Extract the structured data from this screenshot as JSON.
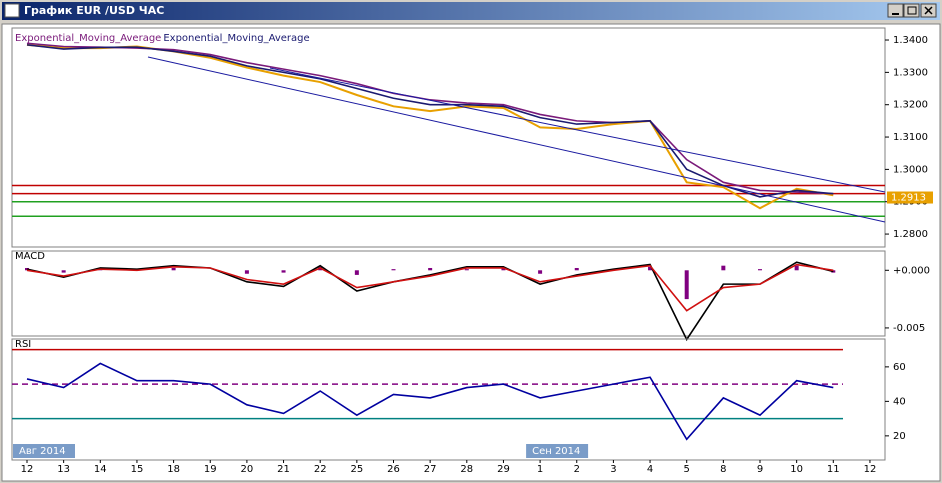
{
  "window": {
    "title": "График EUR /USD ЧАС"
  },
  "chart_data": [
    {
      "type": "line",
      "series": [
        {
          "color": "#e8a000",
          "values": [
            1.3385,
            1.3375,
            1.3375,
            1.338,
            1.3365,
            1.3345,
            1.3315,
            1.329,
            1.327,
            1.323,
            1.3195,
            1.318,
            1.3195,
            1.319,
            1.313,
            1.3125,
            1.314,
            1.315,
            1.296,
            1.2945,
            1.288,
            1.294,
            1.292,
            null
          ]
        },
        {
          "name": "Exponential_Moving_Average",
          "color": "#7a1a7a",
          "values": [
            1.339,
            1.338,
            1.3378,
            1.3375,
            1.337,
            1.3355,
            1.333,
            1.331,
            1.329,
            1.3265,
            1.3235,
            1.3215,
            1.3205,
            1.32,
            1.317,
            1.315,
            1.3145,
            1.315,
            1.303,
            1.296,
            1.2935,
            1.293,
            1.2925,
            null
          ]
        },
        {
          "name": "Exponential_Moving_Average",
          "color": "#1a1a70",
          "values": [
            1.3385,
            1.3372,
            1.3377,
            1.3378,
            1.3365,
            1.335,
            1.332,
            1.33,
            1.328,
            1.325,
            1.322,
            1.32,
            1.32,
            1.3195,
            1.316,
            1.314,
            1.3145,
            1.315,
            1.3,
            1.295,
            1.2915,
            1.2935,
            1.2925,
            null
          ]
        }
      ],
      "hlines": [
        {
          "value": 1.295,
          "color": "#c00000"
        },
        {
          "value": 1.2925,
          "color": "#c00000"
        },
        {
          "value": 1.29,
          "color": "#20a020"
        },
        {
          "value": 1.2855,
          "color": "#20a020"
        }
      ],
      "last_value": 1.2913,
      "ylim": [
        1.276,
        1.3431
      ],
      "yticks": [
        {
          "value": 1.28,
          "label": "1.2800"
        },
        {
          "value": 1.29,
          "label": "1.2900"
        },
        {
          "value": 1.3,
          "label": "1.3000"
        },
        {
          "value": 1.31,
          "label": "1.3100"
        },
        {
          "value": 1.32,
          "label": "1.3200"
        },
        {
          "value": 1.33,
          "label": "1.3300"
        },
        {
          "value": 1.34,
          "label": "1.3400"
        }
      ]
    },
    {
      "type": "line",
      "title": "MACD",
      "series": [
        {
          "kind": "bar",
          "color": "#800080",
          "values": [
            0.0002,
            -0.0002,
            0.0001,
            0.0001,
            0.0002,
            0,
            -0.0003,
            -0.0002,
            0.0003,
            -0.0004,
            0.0001,
            0.0002,
            0.0001,
            0.0002,
            -0.0003,
            0.0002,
            0.0001,
            0.0003,
            -0.0025,
            0.0004,
            0.0001,
            0.0004,
            -0.0002,
            null
          ]
        },
        {
          "color": "#000000",
          "values": [
            0.0001,
            -0.0006,
            0.0002,
            0.0001,
            0.0004,
            0.0002,
            -0.001,
            -0.0014,
            0.0004,
            -0.0018,
            -0.001,
            -0.0004,
            0.0003,
            0.0003,
            -0.0012,
            -0.0004,
            0.0001,
            0.0005,
            -0.006,
            -0.0012,
            -0.0012,
            0.0007,
            -0.0001,
            null
          ]
        },
        {
          "color": "#d01010",
          "values": [
            0,
            -0.0005,
            0.0001,
            0,
            0.0003,
            0.0002,
            -0.0008,
            -0.0012,
            0.0002,
            -0.0015,
            -0.001,
            -0.0005,
            0.0002,
            0.0002,
            -0.001,
            -0.0005,
            0,
            0.0004,
            -0.0035,
            -0.0015,
            -0.0012,
            0.0005,
            0,
            null
          ]
        }
      ],
      "ylim": [
        -0.0057,
        0.0015
      ],
      "yticks": [
        {
          "value": 0,
          "label": "+0.000"
        },
        {
          "value": -0.005,
          "label": "-0.005"
        }
      ]
    },
    {
      "type": "line",
      "title": "RSI",
      "categories": [
        "12",
        "13",
        "14",
        "15",
        "18",
        "19",
        "20",
        "21",
        "22",
        "25",
        "26",
        "27",
        "28",
        "29",
        "1",
        "2",
        "3",
        "4",
        "5",
        "8",
        "9",
        "10",
        "11",
        "12"
      ],
      "x_periods": [
        "Авг 2014",
        "Сен 2014"
      ],
      "series": [
        {
          "color": "#0000a0",
          "values": [
            53,
            48,
            62,
            52,
            52,
            50,
            38,
            33,
            46,
            32,
            44,
            42,
            48,
            50,
            42,
            46,
            50,
            54,
            18,
            42,
            32,
            52,
            48,
            null
          ]
        }
      ],
      "hlines": [
        {
          "value": 70,
          "color": "#c00000"
        },
        {
          "value": 50,
          "color": "#800080",
          "dashed": true
        },
        {
          "value": 30,
          "color": "#008080"
        }
      ],
      "ylim": [
        6,
        75
      ],
      "yticks": [
        20,
        40,
        60
      ]
    }
  ]
}
